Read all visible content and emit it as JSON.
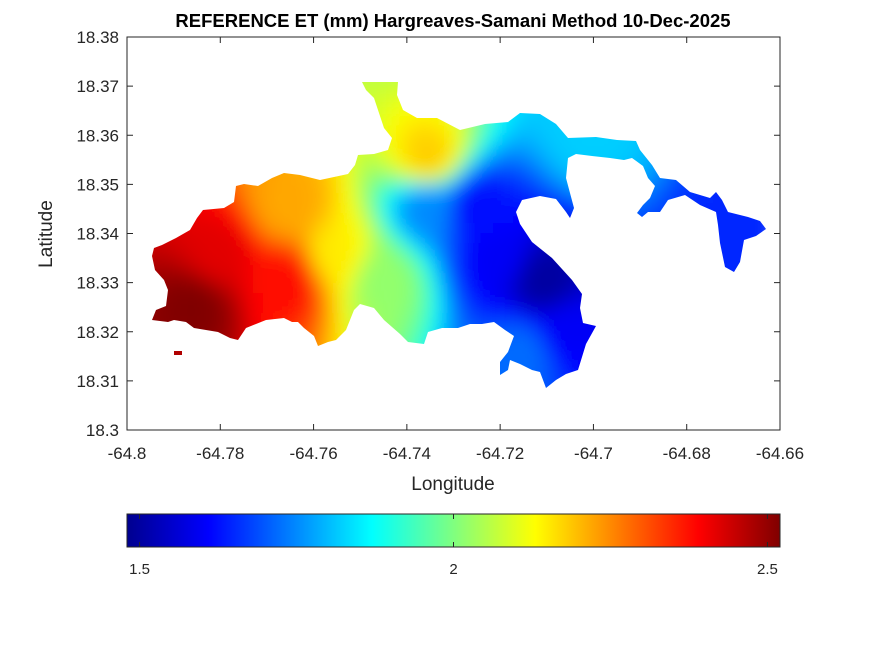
{
  "chart_data": {
    "type": "heatmap",
    "title": "REFERENCE ET (mm) Hargreaves-Samani Method  10-Dec-2025",
    "xlabel": "Longitude",
    "ylabel": "Latitude",
    "xlim": [
      -64.8,
      -64.66
    ],
    "ylim": [
      18.3,
      18.38
    ],
    "xticks": [
      -64.8,
      -64.78,
      -64.76,
      -64.74,
      -64.72,
      -64.7,
      -64.68,
      -64.66
    ],
    "xtick_labels": [
      "-64.8",
      "-64.78",
      "-64.76",
      "-64.74",
      "-64.72",
      "-64.7",
      "-64.68",
      "-64.66"
    ],
    "yticks": [
      18.3,
      18.31,
      18.32,
      18.33,
      18.34,
      18.35,
      18.36,
      18.37,
      18.38
    ],
    "ytick_labels": [
      "18.3",
      "18.31",
      "18.32",
      "18.33",
      "18.34",
      "18.35",
      "18.36",
      "18.37",
      "18.38"
    ],
    "colormap": "jet",
    "colorbar": {
      "clim": [
        1.48,
        2.52
      ],
      "ticks": [
        1.5,
        2,
        2.5
      ],
      "tick_labels": [
        "1.5",
        "2",
        "2.5"
      ],
      "placement": "bottom"
    },
    "grid": false,
    "approximate_values": [
      {
        "lon": -64.785,
        "lat": 18.325,
        "et": 2.52
      },
      {
        "lon": -64.78,
        "lat": 18.335,
        "et": 2.42
      },
      {
        "lon": -64.765,
        "lat": 18.33,
        "et": 2.38
      },
      {
        "lon": -64.765,
        "lat": 18.345,
        "et": 2.22
      },
      {
        "lon": -64.755,
        "lat": 18.335,
        "et": 2.15
      },
      {
        "lon": -64.745,
        "lat": 18.33,
        "et": 2.02
      },
      {
        "lon": -64.735,
        "lat": 18.355,
        "et": 2.18
      },
      {
        "lon": -64.735,
        "lat": 18.345,
        "et": 1.75
      },
      {
        "lon": -64.725,
        "lat": 18.345,
        "et": 1.62
      },
      {
        "lon": -64.72,
        "lat": 18.335,
        "et": 1.6
      },
      {
        "lon": -64.71,
        "lat": 18.33,
        "et": 1.5
      },
      {
        "lon": -64.715,
        "lat": 18.315,
        "et": 1.72
      },
      {
        "lon": -64.705,
        "lat": 18.32,
        "et": 1.6
      },
      {
        "lon": -64.7,
        "lat": 18.36,
        "et": 1.82
      },
      {
        "lon": -64.67,
        "lat": 18.34,
        "et": 1.65
      }
    ]
  }
}
